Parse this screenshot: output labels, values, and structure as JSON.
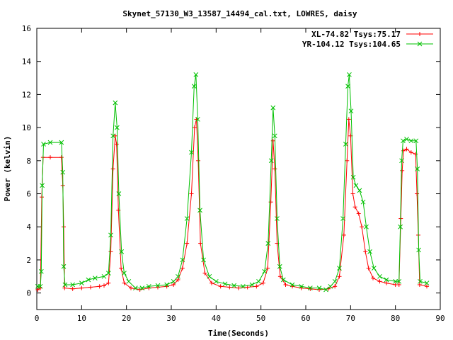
{
  "chart_data": {
    "type": "line",
    "title": "Skynet_57130_W3_13587_14494_cal.txt, LOWRES, daisy",
    "xlabel": "Time(Seconds)",
    "ylabel": "Power (kelvin)",
    "xlim": [
      0,
      90
    ],
    "ylim": [
      -1,
      16
    ],
    "xticks": [
      "0",
      "10",
      "20",
      "30",
      "40",
      "50",
      "60",
      "70",
      "80",
      "90"
    ],
    "yticks": [
      "0",
      "2",
      "4",
      "6",
      "8",
      "10",
      "12",
      "14",
      "16"
    ],
    "grid": false,
    "legend_position": "top-right",
    "series": [
      {
        "name": "XL-74.82 Tsys:75.17",
        "color": "#ff0000",
        "marker": "plus",
        "points": [
          [
            0.2,
            0.2
          ],
          [
            0.8,
            0.3
          ],
          [
            1.1,
            5.8
          ],
          [
            1.4,
            8.2
          ],
          [
            3.0,
            8.2
          ],
          [
            5.5,
            8.2
          ],
          [
            5.8,
            6.5
          ],
          [
            6.0,
            4.0
          ],
          [
            6.2,
            0.3
          ],
          [
            8.0,
            0.25
          ],
          [
            10.0,
            0.3
          ],
          [
            12.0,
            0.35
          ],
          [
            14.0,
            0.4
          ],
          [
            15.0,
            0.45
          ],
          [
            16.0,
            0.6
          ],
          [
            16.5,
            2.5
          ],
          [
            17.0,
            7.5
          ],
          [
            17.5,
            9.5
          ],
          [
            17.8,
            9.0
          ],
          [
            18.2,
            5.0
          ],
          [
            18.8,
            1.5
          ],
          [
            19.5,
            0.6
          ],
          [
            21.0,
            0.3
          ],
          [
            23.0,
            0.2
          ],
          [
            25.0,
            0.3
          ],
          [
            27.0,
            0.35
          ],
          [
            29.0,
            0.4
          ],
          [
            30.5,
            0.5
          ],
          [
            31.5,
            0.8
          ],
          [
            32.5,
            1.5
          ],
          [
            33.5,
            3.0
          ],
          [
            34.5,
            6.0
          ],
          [
            35.2,
            10.0
          ],
          [
            35.6,
            10.5
          ],
          [
            36.0,
            8.0
          ],
          [
            36.5,
            3.0
          ],
          [
            37.5,
            1.2
          ],
          [
            39.0,
            0.6
          ],
          [
            41.0,
            0.4
          ],
          [
            43.0,
            0.35
          ],
          [
            45.0,
            0.3
          ],
          [
            47.0,
            0.35
          ],
          [
            49.0,
            0.4
          ],
          [
            50.5,
            0.6
          ],
          [
            51.5,
            1.5
          ],
          [
            52.2,
            5.5
          ],
          [
            52.7,
            9.2
          ],
          [
            53.1,
            7.5
          ],
          [
            53.6,
            3.0
          ],
          [
            54.3,
            1.0
          ],
          [
            55.5,
            0.5
          ],
          [
            57.0,
            0.4
          ],
          [
            59.0,
            0.3
          ],
          [
            61.0,
            0.25
          ],
          [
            63.0,
            0.2
          ],
          [
            65.0,
            0.25
          ],
          [
            66.5,
            0.4
          ],
          [
            67.5,
            1.0
          ],
          [
            68.5,
            3.5
          ],
          [
            69.2,
            8.0
          ],
          [
            69.6,
            10.5
          ],
          [
            70.0,
            9.5
          ],
          [
            70.5,
            6.0
          ],
          [
            71.0,
            5.2
          ],
          [
            71.8,
            4.8
          ],
          [
            72.5,
            4.0
          ],
          [
            73.3,
            2.5
          ],
          [
            74.0,
            1.5
          ],
          [
            75.0,
            0.9
          ],
          [
            76.5,
            0.7
          ],
          [
            78.0,
            0.6
          ],
          [
            80.0,
            0.5
          ],
          [
            80.8,
            0.5
          ],
          [
            81.2,
            4.5
          ],
          [
            81.5,
            7.4
          ],
          [
            81.8,
            8.6
          ],
          [
            82.5,
            8.7
          ],
          [
            83.5,
            8.5
          ],
          [
            84.5,
            8.4
          ],
          [
            84.8,
            6.0
          ],
          [
            85.1,
            3.5
          ],
          [
            85.4,
            0.5
          ],
          [
            87.0,
            0.4
          ]
        ]
      },
      {
        "name": "YR-104.12 Tsys:104.65",
        "color": "#00c000",
        "marker": "cross",
        "points": [
          [
            0.2,
            0.4
          ],
          [
            0.8,
            0.4
          ],
          [
            1.0,
            1.3
          ],
          [
            1.2,
            6.5
          ],
          [
            1.5,
            9.0
          ],
          [
            3.0,
            9.1
          ],
          [
            5.5,
            9.1
          ],
          [
            5.8,
            7.3
          ],
          [
            6.0,
            1.6
          ],
          [
            6.3,
            0.5
          ],
          [
            8.0,
            0.5
          ],
          [
            10.0,
            0.6
          ],
          [
            11.5,
            0.8
          ],
          [
            13.0,
            0.9
          ],
          [
            15.0,
            1.0
          ],
          [
            16.0,
            1.2
          ],
          [
            16.5,
            3.5
          ],
          [
            17.0,
            9.5
          ],
          [
            17.5,
            11.5
          ],
          [
            17.9,
            10.0
          ],
          [
            18.3,
            6.0
          ],
          [
            18.9,
            2.5
          ],
          [
            19.5,
            1.2
          ],
          [
            20.5,
            0.7
          ],
          [
            22.0,
            0.3
          ],
          [
            23.5,
            0.3
          ],
          [
            25.0,
            0.4
          ],
          [
            27.0,
            0.45
          ],
          [
            29.0,
            0.5
          ],
          [
            30.5,
            0.7
          ],
          [
            31.5,
            1.0
          ],
          [
            32.5,
            2.0
          ],
          [
            33.5,
            4.5
          ],
          [
            34.5,
            8.5
          ],
          [
            35.1,
            12.5
          ],
          [
            35.5,
            13.2
          ],
          [
            35.9,
            10.5
          ],
          [
            36.4,
            5.0
          ],
          [
            37.2,
            2.0
          ],
          [
            38.5,
            1.0
          ],
          [
            40.0,
            0.7
          ],
          [
            42.0,
            0.55
          ],
          [
            44.0,
            0.45
          ],
          [
            46.0,
            0.4
          ],
          [
            48.0,
            0.5
          ],
          [
            49.5,
            0.7
          ],
          [
            50.8,
            1.3
          ],
          [
            51.6,
            3.0
          ],
          [
            52.3,
            8.0
          ],
          [
            52.7,
            11.2
          ],
          [
            53.1,
            9.5
          ],
          [
            53.6,
            4.5
          ],
          [
            54.2,
            1.6
          ],
          [
            55.0,
            0.8
          ],
          [
            57.0,
            0.5
          ],
          [
            59.0,
            0.4
          ],
          [
            61.0,
            0.3
          ],
          [
            63.0,
            0.3
          ],
          [
            64.5,
            0.2
          ],
          [
            65.5,
            0.4
          ],
          [
            66.5,
            0.7
          ],
          [
            67.5,
            1.5
          ],
          [
            68.3,
            4.5
          ],
          [
            68.9,
            9.0
          ],
          [
            69.4,
            12.5
          ],
          [
            69.7,
            13.2
          ],
          [
            70.1,
            11.0
          ],
          [
            70.6,
            7.0
          ],
          [
            71.2,
            6.5
          ],
          [
            72.0,
            6.2
          ],
          [
            72.8,
            5.5
          ],
          [
            73.5,
            4.0
          ],
          [
            74.3,
            2.5
          ],
          [
            75.2,
            1.5
          ],
          [
            76.5,
            1.0
          ],
          [
            78.0,
            0.8
          ],
          [
            80.0,
            0.7
          ],
          [
            80.8,
            0.7
          ],
          [
            81.1,
            4.0
          ],
          [
            81.4,
            8.0
          ],
          [
            81.7,
            9.2
          ],
          [
            82.5,
            9.3
          ],
          [
            83.5,
            9.2
          ],
          [
            84.6,
            9.2
          ],
          [
            84.9,
            7.5
          ],
          [
            85.2,
            2.6
          ],
          [
            85.5,
            0.7
          ],
          [
            87.0,
            0.6
          ]
        ]
      }
    ]
  }
}
